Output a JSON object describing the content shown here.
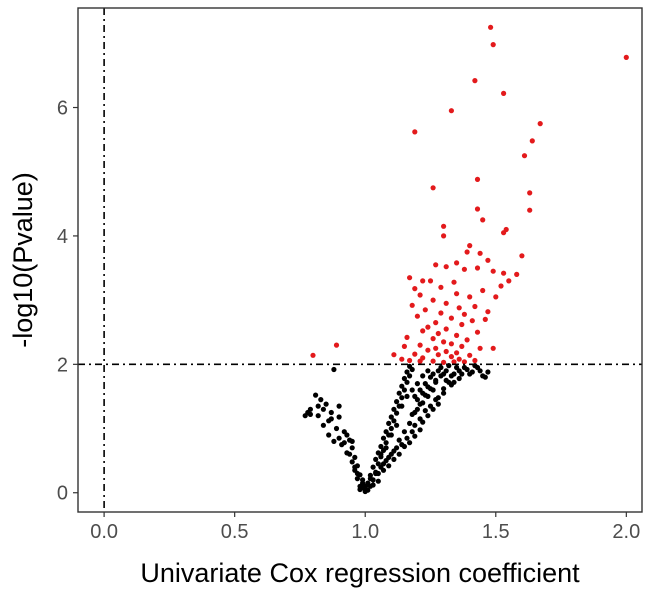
{
  "chart_data": {
    "type": "scatter",
    "xlabel": "Univariate Cox regression coefficient",
    "ylabel": "-log10(Pvalue)",
    "xlim": [
      -0.1,
      2.06
    ],
    "ylim": [
      -0.3,
      7.55
    ],
    "xticks": [
      0.0,
      0.5,
      1.0,
      1.5,
      2.0
    ],
    "xtick_labels": [
      "0.0",
      "0.5",
      "1.0",
      "1.5",
      "2.0"
    ],
    "yticks": [
      0,
      2,
      4,
      6
    ],
    "ytick_labels": [
      "0",
      "2",
      "4",
      "6"
    ],
    "grid": false,
    "threshold_lines": {
      "x": 0.0,
      "y": 2.0,
      "style": "dash-dot"
    },
    "colors": {
      "significant": "#e31a1c",
      "nonsignificant": "#000000",
      "axis_text": "#4d4d4d"
    },
    "series": [
      {
        "color": "#e31a1c",
        "points": [
          [
            1.48,
            7.25
          ],
          [
            1.49,
            6.98
          ],
          [
            2.0,
            6.78
          ],
          [
            1.42,
            6.42
          ],
          [
            1.53,
            6.22
          ],
          [
            1.33,
            5.95
          ],
          [
            1.67,
            5.75
          ],
          [
            1.19,
            5.62
          ],
          [
            1.64,
            5.48
          ],
          [
            1.61,
            5.25
          ],
          [
            1.43,
            4.88
          ],
          [
            1.26,
            4.75
          ],
          [
            1.63,
            4.67
          ],
          [
            1.63,
            4.4
          ],
          [
            1.43,
            4.42
          ],
          [
            1.45,
            4.25
          ],
          [
            1.3,
            4.15
          ],
          [
            1.54,
            4.1
          ],
          [
            1.3,
            4.0
          ],
          [
            1.53,
            4.05
          ],
          [
            1.4,
            3.85
          ],
          [
            1.39,
            3.75
          ],
          [
            1.44,
            3.73
          ],
          [
            1.6,
            3.69
          ],
          [
            1.47,
            3.62
          ],
          [
            1.35,
            3.58
          ],
          [
            1.27,
            3.55
          ],
          [
            1.31,
            3.52
          ],
          [
            1.43,
            3.5
          ],
          [
            1.49,
            3.45
          ],
          [
            1.38,
            3.48
          ],
          [
            1.53,
            3.42
          ],
          [
            1.58,
            3.4
          ],
          [
            1.17,
            3.35
          ],
          [
            1.22,
            3.3
          ],
          [
            1.55,
            3.3
          ],
          [
            1.25,
            3.3
          ],
          [
            1.34,
            3.28
          ],
          [
            1.52,
            3.22
          ],
          [
            1.29,
            3.2
          ],
          [
            1.19,
            3.18
          ],
          [
            1.45,
            3.15
          ],
          [
            1.35,
            3.1
          ],
          [
            1.4,
            3.05
          ],
          [
            1.21,
            3.08
          ],
          [
            1.5,
            3.05
          ],
          [
            1.26,
            3.0
          ],
          [
            1.31,
            2.95
          ],
          [
            1.18,
            2.92
          ],
          [
            1.42,
            2.9
          ],
          [
            1.36,
            2.88
          ],
          [
            1.23,
            2.85
          ],
          [
            1.47,
            2.82
          ],
          [
            1.29,
            2.8
          ],
          [
            1.38,
            2.78
          ],
          [
            1.2,
            2.75
          ],
          [
            1.33,
            2.72
          ],
          [
            1.46,
            2.7
          ],
          [
            1.41,
            2.68
          ],
          [
            1.27,
            2.65
          ],
          [
            1.37,
            2.62
          ],
          [
            1.24,
            2.58
          ],
          [
            1.31,
            2.55
          ],
          [
            1.22,
            2.52
          ],
          [
            1.43,
            2.5
          ],
          [
            1.28,
            2.48
          ],
          [
            1.35,
            2.45
          ],
          [
            1.16,
            2.42
          ],
          [
            1.26,
            2.4
          ],
          [
            1.39,
            2.38
          ],
          [
            1.3,
            2.35
          ],
          [
            1.33,
            2.32
          ],
          [
            1.21,
            2.3
          ],
          [
            1.37,
            2.28
          ],
          [
            1.15,
            2.28
          ],
          [
            1.27,
            2.25
          ],
          [
            1.44,
            2.25
          ],
          [
            1.49,
            2.25
          ],
          [
            1.24,
            2.22
          ],
          [
            1.31,
            2.2
          ],
          [
            1.35,
            2.18
          ],
          [
            1.19,
            2.16
          ],
          [
            1.28,
            2.15
          ],
          [
            1.4,
            2.14
          ],
          [
            1.33,
            2.12
          ],
          [
            1.22,
            2.1
          ],
          [
            1.36,
            2.08
          ],
          [
            1.17,
            2.06
          ],
          [
            1.26,
            2.05
          ],
          [
            1.38,
            2.04
          ],
          [
            1.3,
            2.03
          ],
          [
            1.42,
            2.06
          ],
          [
            0.8,
            2.14
          ],
          [
            0.89,
            2.3
          ],
          [
            1.14,
            2.08
          ],
          [
            1.21,
            2.05
          ],
          [
            1.34,
            2.04
          ],
          [
            1.11,
            2.15
          ]
        ]
      },
      {
        "color": "#000000",
        "points": [
          [
            0.88,
            1.92
          ],
          [
            0.81,
            1.52
          ],
          [
            0.83,
            1.45
          ],
          [
            0.79,
            1.3
          ],
          [
            0.85,
            1.38
          ],
          [
            0.82,
            1.2
          ],
          [
            0.87,
            1.25
          ],
          [
            0.79,
            1.22
          ],
          [
            0.86,
            1.12
          ],
          [
            0.9,
            1.18
          ],
          [
            0.84,
            1.05
          ],
          [
            0.89,
            1.0
          ],
          [
            0.92,
            0.95
          ],
          [
            0.9,
            0.85
          ],
          [
            0.94,
            0.82
          ],
          [
            0.91,
            0.75
          ],
          [
            0.95,
            0.7
          ],
          [
            0.93,
            0.62
          ],
          [
            0.96,
            0.55
          ],
          [
            0.95,
            0.48
          ],
          [
            0.97,
            0.42
          ],
          [
            0.96,
            0.35
          ],
          [
            0.98,
            0.28
          ],
          [
            0.97,
            0.22
          ],
          [
            0.99,
            0.15
          ],
          [
            0.98,
            0.1
          ],
          [
            1.0,
            0.05
          ],
          [
            1.0,
            0.02
          ],
          [
            1.01,
            0.04
          ],
          [
            1.02,
            0.1
          ],
          [
            1.01,
            0.15
          ],
          [
            1.03,
            0.2
          ],
          [
            1.02,
            0.27
          ],
          [
            1.04,
            0.32
          ],
          [
            1.03,
            0.4
          ],
          [
            1.05,
            0.45
          ],
          [
            1.04,
            0.52
          ],
          [
            1.06,
            0.56
          ],
          [
            1.05,
            0.62
          ],
          [
            1.07,
            0.66
          ],
          [
            1.06,
            0.72
          ],
          [
            1.08,
            0.78
          ],
          [
            1.07,
            0.85
          ],
          [
            1.09,
            0.9
          ],
          [
            1.08,
            0.95
          ],
          [
            1.1,
            1.0
          ],
          [
            1.09,
            1.08
          ],
          [
            1.11,
            1.12
          ],
          [
            1.1,
            1.18
          ],
          [
            1.12,
            1.24
          ],
          [
            1.11,
            1.3
          ],
          [
            1.13,
            1.35
          ],
          [
            1.12,
            1.42
          ],
          [
            1.14,
            1.48
          ],
          [
            1.13,
            1.55
          ],
          [
            1.15,
            1.6
          ],
          [
            1.14,
            1.66
          ],
          [
            1.16,
            1.72
          ],
          [
            1.15,
            1.78
          ],
          [
            1.17,
            1.82
          ],
          [
            1.16,
            1.88
          ],
          [
            1.18,
            1.92
          ],
          [
            1.17,
            1.97
          ],
          [
            1.19,
            1.5
          ],
          [
            1.2,
            1.45
          ],
          [
            1.21,
            1.6
          ],
          [
            1.22,
            1.55
          ],
          [
            1.2,
            1.3
          ],
          [
            1.18,
            1.22
          ],
          [
            1.23,
            1.7
          ],
          [
            1.24,
            1.65
          ],
          [
            1.25,
            1.8
          ],
          [
            1.22,
            1.4
          ],
          [
            1.26,
            1.85
          ],
          [
            1.27,
            1.75
          ],
          [
            1.28,
            1.9
          ],
          [
            1.24,
            1.5
          ],
          [
            1.29,
            1.95
          ],
          [
            1.3,
            1.85
          ],
          [
            1.31,
            1.9
          ],
          [
            1.26,
            1.6
          ],
          [
            1.32,
            1.98
          ],
          [
            1.33,
            1.82
          ],
          [
            1.21,
            1.15
          ],
          [
            1.23,
            1.28
          ],
          [
            1.19,
            1.05
          ],
          [
            1.25,
            1.35
          ],
          [
            1.27,
            1.45
          ],
          [
            1.3,
            1.55
          ],
          [
            1.34,
            1.72
          ],
          [
            1.36,
            1.9
          ],
          [
            1.38,
            1.95
          ],
          [
            1.4,
            1.85
          ],
          [
            1.42,
            1.98
          ],
          [
            1.44,
            1.9
          ],
          [
            1.46,
            1.8
          ],
          [
            1.28,
            1.38
          ],
          [
            1.18,
            0.95
          ],
          [
            1.16,
            0.85
          ],
          [
            1.14,
            0.75
          ],
          [
            1.12,
            0.7
          ],
          [
            1.1,
            0.6
          ],
          [
            1.08,
            0.5
          ],
          [
            1.06,
            0.4
          ],
          [
            1.04,
            0.3
          ],
          [
            1.02,
            0.22
          ],
          [
            1.05,
            0.3
          ],
          [
            1.07,
            0.45
          ],
          [
            1.09,
            0.55
          ],
          [
            1.11,
            0.65
          ],
          [
            1.13,
            0.82
          ],
          [
            1.15,
            0.95
          ],
          [
            1.17,
            1.08
          ],
          [
            1.19,
            1.25
          ],
          [
            1.21,
            1.38
          ],
          [
            1.23,
            1.52
          ],
          [
            1.25,
            1.62
          ],
          [
            1.27,
            1.72
          ],
          [
            1.29,
            1.82
          ],
          [
            1.31,
            1.75
          ],
          [
            1.33,
            1.68
          ],
          [
            1.35,
            1.95
          ],
          [
            1.37,
            1.85
          ],
          [
            0.78,
            1.25
          ],
          [
            0.77,
            1.2
          ],
          [
            0.86,
            0.9
          ],
          [
            0.88,
            0.8
          ],
          [
            0.92,
            0.78
          ],
          [
            0.94,
            0.6
          ],
          [
            0.96,
            0.4
          ],
          [
            0.97,
            0.3
          ],
          [
            0.99,
            0.2
          ],
          [
            1.0,
            0.1
          ],
          [
            0.98,
            0.05
          ],
          [
            0.99,
            0.08
          ],
          [
            1.01,
            0.12
          ],
          [
            1.03,
            0.12
          ],
          [
            1.05,
            0.18
          ],
          [
            1.07,
            0.35
          ],
          [
            1.09,
            0.42
          ],
          [
            1.11,
            0.52
          ],
          [
            1.13,
            0.6
          ],
          [
            1.15,
            0.72
          ],
          [
            1.17,
            0.78
          ],
          [
            1.19,
            0.88
          ],
          [
            1.21,
            0.98
          ],
          [
            1.22,
            1.1
          ],
          [
            1.24,
            1.2
          ],
          [
            1.26,
            1.3
          ],
          [
            1.28,
            1.48
          ],
          [
            1.3,
            1.62
          ],
          [
            1.32,
            1.72
          ],
          [
            1.34,
            1.85
          ],
          [
            1.36,
            1.78
          ],
          [
            1.39,
            1.92
          ],
          [
            1.41,
            1.88
          ],
          [
            1.43,
            1.95
          ],
          [
            1.45,
            1.82
          ],
          [
            1.47,
            1.88
          ],
          [
            1.2,
            1.7
          ],
          [
            1.22,
            1.82
          ],
          [
            1.24,
            1.9
          ],
          [
            1.18,
            1.6
          ],
          [
            1.16,
            1.5
          ],
          [
            1.14,
            1.35
          ],
          [
            1.12,
            1.05
          ],
          [
            1.1,
            0.9
          ],
          [
            1.08,
            0.7
          ],
          [
            1.06,
            0.6
          ],
          [
            0.9,
            1.35
          ],
          [
            0.84,
            1.3
          ],
          [
            0.82,
            1.35
          ],
          [
            0.87,
            1.15
          ],
          [
            0.93,
            0.9
          ],
          [
            0.95,
            0.8
          ]
        ]
      }
    ]
  }
}
